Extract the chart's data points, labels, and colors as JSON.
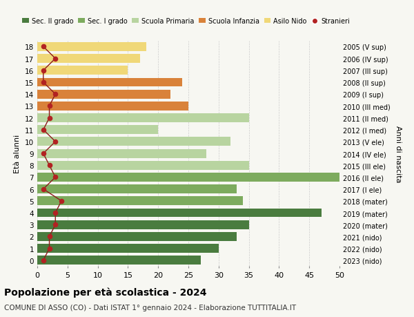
{
  "ages": [
    18,
    17,
    16,
    15,
    14,
    13,
    12,
    11,
    10,
    9,
    8,
    7,
    6,
    5,
    4,
    3,
    2,
    1,
    0
  ],
  "right_labels": [
    "2005 (V sup)",
    "2006 (IV sup)",
    "2007 (III sup)",
    "2008 (II sup)",
    "2009 (I sup)",
    "2010 (III med)",
    "2011 (II med)",
    "2012 (I med)",
    "2013 (V ele)",
    "2014 (IV ele)",
    "2015 (III ele)",
    "2016 (II ele)",
    "2017 (I ele)",
    "2018 (mater)",
    "2019 (mater)",
    "2020 (mater)",
    "2021 (nido)",
    "2022 (nido)",
    "2023 (nido)"
  ],
  "bar_values": [
    27,
    30,
    33,
    35,
    47,
    34,
    33,
    50,
    35,
    28,
    32,
    20,
    35,
    25,
    22,
    24,
    15,
    17,
    18
  ],
  "bar_colors": [
    "#4a7c3f",
    "#4a7c3f",
    "#4a7c3f",
    "#4a7c3f",
    "#4a7c3f",
    "#7dab5e",
    "#7dab5e",
    "#7dab5e",
    "#b8d4a0",
    "#b8d4a0",
    "#b8d4a0",
    "#b8d4a0",
    "#b8d4a0",
    "#d9823a",
    "#d9823a",
    "#d9823a",
    "#f0d878",
    "#f0d878",
    "#f0d878"
  ],
  "stranieri_values": [
    1,
    2,
    2,
    3,
    3,
    4,
    1,
    3,
    2,
    1,
    3,
    1,
    2,
    2,
    3,
    1,
    1,
    3,
    1
  ],
  "legend_labels": [
    "Sec. II grado",
    "Sec. I grado",
    "Scuola Primaria",
    "Scuola Infanzia",
    "Asilo Nido",
    "Stranieri"
  ],
  "legend_colors": [
    "#4a7c3f",
    "#7dab5e",
    "#b8d4a0",
    "#d9823a",
    "#f0d878",
    "#b22222"
  ],
  "title": "Popolazione per età scolastica - 2024",
  "subtitle": "COMUNE DI ASSO (CO) - Dati ISTAT 1° gennaio 2024 - Elaborazione TUTTITALIA.IT",
  "ylabel_left": "Età alunni",
  "ylabel_right": "Anni di nascita",
  "xlim": [
    0,
    50
  ],
  "xticks": [
    0,
    5,
    10,
    15,
    20,
    25,
    30,
    35,
    40,
    45,
    50
  ],
  "background_color": "#f7f7f2",
  "plot_bg_color": "#f7f7f2",
  "grid_color": "#cccccc",
  "stranieri_color": "#b22222",
  "stranieri_line_color": "#8b1a1a"
}
